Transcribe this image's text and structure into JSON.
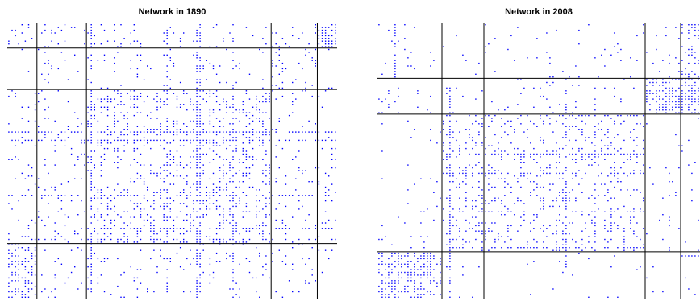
{
  "chart_data": [
    {
      "type": "scatter",
      "title": "Network in 1890",
      "matrix_size": 100,
      "block_boundaries": [
        9,
        24,
        80,
        94
      ],
      "point_color": "#0000ff",
      "line_color": "#000000",
      "dense_blocks": [
        {
          "r0": 0,
          "r1": 9,
          "c0": 0,
          "c1": 100,
          "density": 0.12
        },
        {
          "r0": 0,
          "r1": 9,
          "c0": 94,
          "c1": 100,
          "density": 0.55
        },
        {
          "r0": 9,
          "r1": 24,
          "c0": 0,
          "c1": 100,
          "density": 0.07
        },
        {
          "r0": 9,
          "r1": 24,
          "c0": 80,
          "c1": 94,
          "density": 0.12
        },
        {
          "r0": 24,
          "r1": 80,
          "c0": 0,
          "c1": 100,
          "density": 0.1
        },
        {
          "r0": 24,
          "r1": 80,
          "c0": 24,
          "c1": 80,
          "density": 0.18
        },
        {
          "r0": 80,
          "r1": 100,
          "c0": 0,
          "c1": 100,
          "density": 0.08
        },
        {
          "r0": 80,
          "r1": 100,
          "c0": 0,
          "c1": 9,
          "density": 0.45
        }
      ],
      "dense_rows": [
        {
          "index": 39,
          "c0": 0,
          "c1": 100,
          "density": 0.8
        },
        {
          "index": 42,
          "c0": 0,
          "c1": 100,
          "density": 0.7
        },
        {
          "index": 62,
          "c0": 0,
          "c1": 100,
          "density": 0.5
        },
        {
          "index": 74,
          "c0": 20,
          "c1": 100,
          "density": 0.5
        },
        {
          "index": 78,
          "c0": 0,
          "c1": 100,
          "density": 0.35
        }
      ],
      "dense_columns": [
        {
          "index": 25,
          "r0": 0,
          "r1": 100,
          "density": 0.5
        },
        {
          "index": 48,
          "r0": 0,
          "r1": 100,
          "density": 0.4
        },
        {
          "index": 57,
          "r0": 0,
          "r1": 100,
          "density": 0.6
        },
        {
          "index": 58,
          "r0": 0,
          "r1": 100,
          "density": 0.6
        },
        {
          "index": 68,
          "r0": 0,
          "r1": 100,
          "density": 0.35
        }
      ],
      "seed": 1890
    },
    {
      "type": "scatter",
      "title": "Network in 2008",
      "matrix_size": 100,
      "block_boundaries": [
        20,
        33,
        83,
        94
      ],
      "point_color": "#0000ff",
      "line_color": "#000000",
      "dense_blocks": [
        {
          "r0": 0,
          "r1": 20,
          "c0": 0,
          "c1": 100,
          "density": 0.04
        },
        {
          "r0": 0,
          "r1": 20,
          "c0": 94,
          "c1": 100,
          "density": 0.35
        },
        {
          "r0": 20,
          "r1": 33,
          "c0": 0,
          "c1": 100,
          "density": 0.05
        },
        {
          "r0": 20,
          "r1": 33,
          "c0": 83,
          "c1": 100,
          "density": 0.55
        },
        {
          "r0": 33,
          "r1": 83,
          "c0": 0,
          "c1": 100,
          "density": 0.04
        },
        {
          "r0": 33,
          "r1": 83,
          "c0": 20,
          "c1": 83,
          "density": 0.16
        },
        {
          "r0": 83,
          "r1": 100,
          "c0": 0,
          "c1": 100,
          "density": 0.02
        },
        {
          "r0": 83,
          "r1": 100,
          "c0": 0,
          "c1": 20,
          "density": 0.55
        }
      ],
      "dense_rows": [
        {
          "index": 33,
          "c0": 20,
          "c1": 83,
          "density": 0.5
        },
        {
          "index": 47,
          "c0": 20,
          "c1": 83,
          "density": 0.6
        },
        {
          "index": 54,
          "c0": 20,
          "c1": 83,
          "density": 0.5
        },
        {
          "index": 81,
          "c0": 20,
          "c1": 83,
          "density": 0.7
        },
        {
          "index": 84,
          "c0": 94,
          "c1": 100,
          "density": 0.9
        }
      ],
      "dense_columns": [
        {
          "index": 5,
          "r0": 0,
          "r1": 20,
          "density": 0.9
        },
        {
          "index": 22,
          "r0": 20,
          "r1": 100,
          "density": 0.6
        },
        {
          "index": 58,
          "r0": 20,
          "r1": 90,
          "density": 0.5
        },
        {
          "index": 67,
          "r0": 20,
          "r1": 83,
          "density": 0.4
        }
      ],
      "seed": 2008
    }
  ]
}
